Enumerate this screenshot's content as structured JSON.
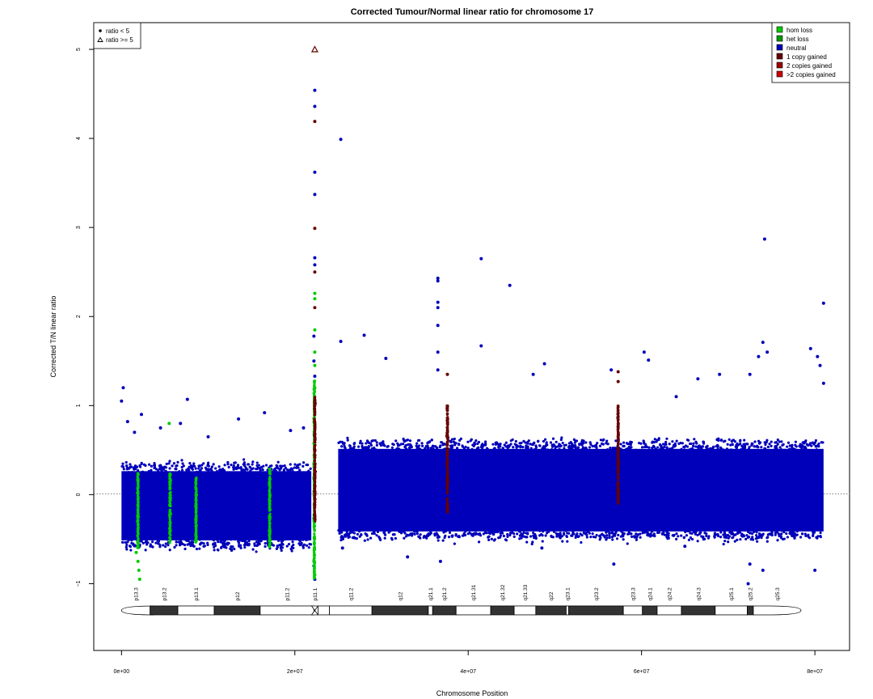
{
  "chart_data": {
    "type": "scatter",
    "title": "Corrected Tumour/Normal linear ratio for chromosome  17",
    "xlabel": "Chromosome Position",
    "ylabel": "Corrected T/N linear ratio",
    "xlim": [
      -3200000,
      84000000
    ],
    "ylim": [
      -1.75,
      5.3
    ],
    "x_ticks": [
      {
        "value": 0,
        "label": "0e+00"
      },
      {
        "value": 20000000,
        "label": "2e+07"
      },
      {
        "value": 40000000,
        "label": "4e+07"
      },
      {
        "value": 60000000,
        "label": "6e+07"
      },
      {
        "value": 80000000,
        "label": "8e+07"
      }
    ],
    "y_ticks": [
      {
        "value": -1,
        "label": "−1"
      },
      {
        "value": 0,
        "label": "0"
      },
      {
        "value": 1,
        "label": "1"
      },
      {
        "value": 2,
        "label": "2"
      },
      {
        "value": 3,
        "label": "3"
      },
      {
        "value": 4,
        "label": "4"
      },
      {
        "value": 5,
        "label": "5"
      }
    ],
    "reference_line": {
      "y": 0,
      "style": "dotted"
    },
    "shape_legend": {
      "position": "top-left",
      "entries": [
        {
          "label": "ratio < 5",
          "symbol": "filled-circle"
        },
        {
          "label": "ratio >= 5",
          "symbol": "open-triangle"
        }
      ]
    },
    "legend": {
      "position": "top-right",
      "entries": [
        {
          "label": "hom loss",
          "color": "#00cc00"
        },
        {
          "label": "het loss",
          "color": "#009900"
        },
        {
          "label": "neutral",
          "color": "#0000bb"
        },
        {
          "label": "1 copy gained",
          "color": "#660000"
        },
        {
          "label": "2 copies gained",
          "color": "#990000"
        },
        {
          "label": ">2 copies gained",
          "color": "#cc0000"
        }
      ]
    },
    "series": [
      {
        "name": "neutral",
        "color": "#0000bb",
        "dense_bands": [
          {
            "x": [
              0,
              21900000
            ],
            "y": [
              -0.55,
              0.3
            ]
          },
          {
            "x": [
              25000000,
              81000000
            ],
            "y": [
              -0.45,
              0.55
            ]
          }
        ],
        "points": [
          [
            0,
            1.05
          ],
          [
            200000,
            1.2
          ],
          [
            700000,
            0.82
          ],
          [
            1500000,
            0.7
          ],
          [
            2300000,
            0.9
          ],
          [
            4500000,
            0.75
          ],
          [
            6800000,
            0.8
          ],
          [
            7600000,
            1.07
          ],
          [
            10000000,
            0.65
          ],
          [
            13500000,
            0.85
          ],
          [
            16500000,
            0.92
          ],
          [
            19500000,
            0.72
          ],
          [
            21000000,
            0.75
          ],
          [
            22300000,
            4.54
          ],
          [
            22300000,
            4.36
          ],
          [
            22300000,
            3.62
          ],
          [
            22300000,
            3.37
          ],
          [
            22300000,
            2.66
          ],
          [
            22300000,
            2.58
          ],
          [
            22200000,
            1.78
          ],
          [
            22200000,
            1.5
          ],
          [
            22300000,
            1.33
          ],
          [
            22300000,
            -0.95
          ],
          [
            22200000,
            -0.8
          ],
          [
            25300000,
            3.99
          ],
          [
            25300000,
            1.72
          ],
          [
            28000000,
            1.79
          ],
          [
            30500000,
            1.53
          ],
          [
            36500000,
            2.43
          ],
          [
            36500000,
            2.4
          ],
          [
            36500000,
            2.16
          ],
          [
            36500000,
            2.1
          ],
          [
            36500000,
            1.9
          ],
          [
            36500000,
            1.6
          ],
          [
            36500000,
            1.4
          ],
          [
            41500000,
            2.65
          ],
          [
            41500000,
            1.67
          ],
          [
            44800000,
            2.35
          ],
          [
            47500000,
            1.35
          ],
          [
            48800000,
            1.47
          ],
          [
            56500000,
            1.4
          ],
          [
            60300000,
            1.6
          ],
          [
            60800000,
            1.51
          ],
          [
            64000000,
            1.1
          ],
          [
            66500000,
            1.3
          ],
          [
            69000000,
            1.35
          ],
          [
            72500000,
            1.35
          ],
          [
            73500000,
            1.55
          ],
          [
            74000000,
            1.71
          ],
          [
            74200000,
            2.87
          ],
          [
            74500000,
            1.6
          ],
          [
            79500000,
            1.64
          ],
          [
            80300000,
            1.55
          ],
          [
            80600000,
            1.45
          ],
          [
            81000000,
            2.15
          ],
          [
            81000000,
            1.25
          ],
          [
            25500000,
            -0.6
          ],
          [
            36800000,
            -0.75
          ],
          [
            48500000,
            -0.6
          ],
          [
            56800000,
            -0.78
          ],
          [
            72500000,
            -0.78
          ],
          [
            74000000,
            -0.85
          ],
          [
            80000000,
            -0.85
          ],
          [
            72300000,
            -1.0
          ],
          [
            33000000,
            -0.7
          ],
          [
            65000000,
            -0.58
          ]
        ]
      },
      {
        "name": "hom loss",
        "color": "#00cc00",
        "dense_bands": [
          {
            "x": [
              1800000,
              2000000
            ],
            "y": [
              -0.6,
              0.25
            ]
          },
          {
            "x": [
              5500000,
              5700000
            ],
            "y": [
              -0.55,
              0.25
            ]
          },
          {
            "x": [
              8500000,
              8700000
            ],
            "y": [
              -0.55,
              0.2
            ]
          },
          {
            "x": [
              16600000,
              17600000
            ],
            "y": [
              -0.6,
              0.3
            ]
          },
          {
            "x": [
              22150000,
              22350000
            ],
            "y": [
              -0.95,
              1.3
            ]
          }
        ],
        "points": [
          [
            1700000,
            -0.65
          ],
          [
            1900000,
            -0.75
          ],
          [
            2000000,
            -0.85
          ],
          [
            2100000,
            -0.95
          ],
          [
            5500000,
            0.8
          ],
          [
            22300000,
            2.26
          ],
          [
            22300000,
            2.2
          ],
          [
            22300000,
            1.85
          ],
          [
            22300000,
            1.6
          ],
          [
            22300000,
            1.45
          ],
          [
            22300000,
            1.2
          ],
          [
            22300000,
            0.9
          ],
          [
            22300000,
            -0.9
          ],
          [
            22200000,
            -0.75
          ]
        ]
      },
      {
        "name": "1 copy gained",
        "color": "#660000",
        "dense_bands": [
          {
            "x": [
              22200000,
              22400000
            ],
            "y": [
              -0.3,
              1.1
            ]
          },
          {
            "x": [
              37500000,
              37700000
            ],
            "y": [
              -0.2,
              1.0
            ]
          },
          {
            "x": [
              57200000,
              57400000
            ],
            "y": [
              -0.1,
              1.0
            ]
          }
        ],
        "points": [
          [
            22300000,
            4.19
          ],
          [
            22300000,
            2.99
          ],
          [
            22300000,
            2.5
          ],
          [
            22300000,
            2.1
          ],
          [
            22300000,
            1.05
          ],
          [
            22300000,
            1.0
          ],
          [
            37600000,
            1.35
          ],
          [
            57300000,
            1.38
          ],
          [
            57300000,
            1.27
          ]
        ]
      },
      {
        "name": "ratio >= 5",
        "color": "#660000",
        "symbol": "open-triangle",
        "points": [
          [
            22300000,
            5.0
          ]
        ]
      }
    ],
    "ideogram": {
      "y": -1.3,
      "centromere": 22300000,
      "bands": [
        {
          "name": "p13.3",
          "start": 0,
          "end": 3300000,
          "stain": "gneg"
        },
        {
          "name": "p13.2",
          "start": 3300000,
          "end": 6500000,
          "stain": "gpos"
        },
        {
          "name": "p13.1",
          "start": 6500000,
          "end": 10700000,
          "stain": "gneg"
        },
        {
          "name": "p12",
          "start": 10700000,
          "end": 16000000,
          "stain": "gpos"
        },
        {
          "name": "p11.2",
          "start": 16000000,
          "end": 22200000,
          "stain": "gneg"
        },
        {
          "name": "p11.1",
          "start": 22200000,
          "end": 24000000,
          "stain": "acen"
        },
        {
          "name": "q11.2",
          "start": 24000000,
          "end": 28900000,
          "stain": "gneg"
        },
        {
          "name": "q12",
          "start": 28900000,
          "end": 35400000,
          "stain": "gpos"
        },
        {
          "name": "q21.1",
          "start": 35400000,
          "end": 35900000,
          "stain": "gneg"
        },
        {
          "name": "q21.2",
          "start": 35900000,
          "end": 38600000,
          "stain": "gpos"
        },
        {
          "name": "q21.31",
          "start": 38600000,
          "end": 42600000,
          "stain": "gneg"
        },
        {
          "name": "q21.32",
          "start": 42600000,
          "end": 45300000,
          "stain": "gpos"
        },
        {
          "name": "q21.33",
          "start": 45300000,
          "end": 47800000,
          "stain": "gneg"
        },
        {
          "name": "q22",
          "start": 47800000,
          "end": 51300000,
          "stain": "gpos"
        },
        {
          "name": "q23.1",
          "start": 51300000,
          "end": 51600000,
          "stain": "gneg"
        },
        {
          "name": "q23.2",
          "start": 51600000,
          "end": 57900000,
          "stain": "gpos"
        },
        {
          "name": "q23.3",
          "start": 57900000,
          "end": 60100000,
          "stain": "gneg"
        },
        {
          "name": "q24.1",
          "start": 60100000,
          "end": 61800000,
          "stain": "gpos"
        },
        {
          "name": "q24.2",
          "start": 61800000,
          "end": 64600000,
          "stain": "gneg"
        },
        {
          "name": "q24.3",
          "start": 64600000,
          "end": 68500000,
          "stain": "gpos"
        },
        {
          "name": "q25.1",
          "start": 68500000,
          "end": 72200000,
          "stain": "gneg"
        },
        {
          "name": "q25.2",
          "start": 72200000,
          "end": 72900000,
          "stain": "gpos"
        },
        {
          "name": "q25.3",
          "start": 72900000,
          "end": 78400000,
          "stain": "gneg"
        }
      ]
    }
  }
}
